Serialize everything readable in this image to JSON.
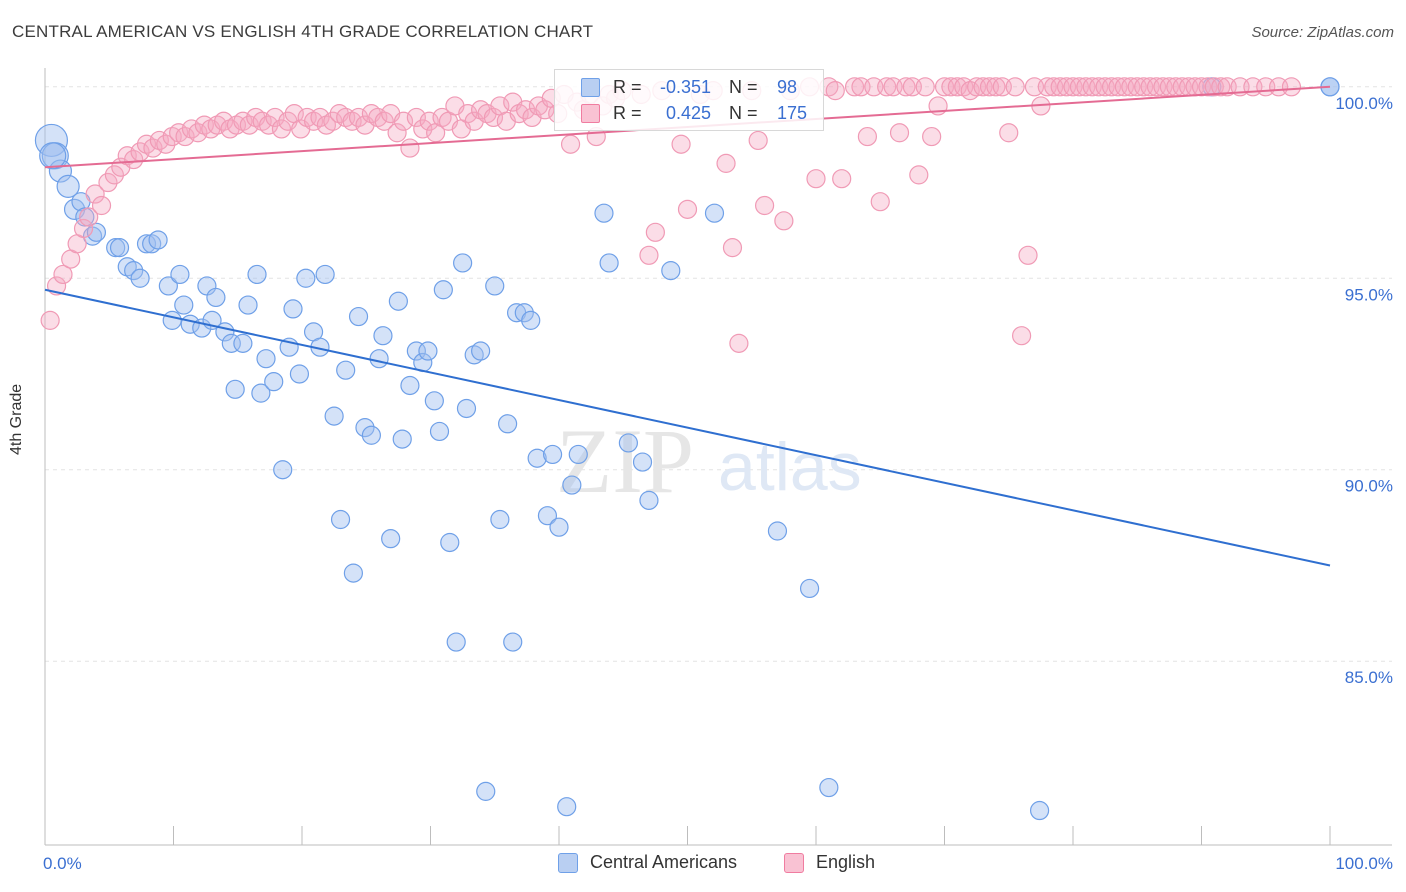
{
  "header": {
    "title": "CENTRAL AMERICAN VS ENGLISH 4TH GRADE CORRELATION CHART",
    "source": "Source: ZipAtlas.com"
  },
  "watermark": {
    "zip": "ZIP",
    "atlas": "atlas"
  },
  "legend": {
    "items": [
      {
        "label": "Central Americans",
        "color": "#6fa0e8"
      },
      {
        "label": "English",
        "color": "#f07ca0"
      }
    ]
  },
  "stats": [
    {
      "r_label": "R =",
      "r_value": "-0.351",
      "n_label": "N =",
      "n_value": "98"
    },
    {
      "r_label": "R =",
      "r_value": "0.425",
      "n_label": "N =",
      "n_value": "175"
    }
  ],
  "chart_data": {
    "type": "scatter",
    "title": "CENTRAL AMERICAN VS ENGLISH 4TH GRADE CORRELATION CHART",
    "xlabel": "",
    "ylabel": "4th Grade",
    "xlim": [
      0,
      100
    ],
    "ylim": [
      80.2,
      100.7
    ],
    "x_tick_labels": [
      "0.0%",
      "100.0%"
    ],
    "y_ticks": [
      85,
      90,
      95,
      100
    ],
    "y_tick_labels": [
      "85.0%",
      "90.0%",
      "95.0%",
      "100.0%"
    ],
    "grid": true,
    "colors": {
      "blue": "#6fa0e8",
      "blue_line": "#2f6fd0",
      "pink": "#f07ca0",
      "pink_line": "#e46b93"
    },
    "series": [
      {
        "name": "Central Americans",
        "r": -0.351,
        "n": 98,
        "trend": {
          "x0": 0,
          "y0": 94.7,
          "x1": 100,
          "y1": 87.5
        },
        "points": [
          [
            0.5,
            98.6
          ],
          [
            0.8,
            98.2
          ],
          [
            1.2,
            97.8
          ],
          [
            1.8,
            97.4
          ],
          [
            2.3,
            96.8
          ],
          [
            2.8,
            97.0
          ],
          [
            3.1,
            96.6
          ],
          [
            3.7,
            96.1
          ],
          [
            4.0,
            96.2
          ],
          [
            5.5,
            95.8
          ],
          [
            5.8,
            95.8
          ],
          [
            6.4,
            95.3
          ],
          [
            6.9,
            95.2
          ],
          [
            7.4,
            95.0
          ],
          [
            7.9,
            95.9
          ],
          [
            8.3,
            95.9
          ],
          [
            8.8,
            96.0
          ],
          [
            9.6,
            94.8
          ],
          [
            9.9,
            93.9
          ],
          [
            10.5,
            95.1
          ],
          [
            10.8,
            94.3
          ],
          [
            11.3,
            93.8
          ],
          [
            12.2,
            93.7
          ],
          [
            12.6,
            94.8
          ],
          [
            13.0,
            93.9
          ],
          [
            13.3,
            94.5
          ],
          [
            14.0,
            93.6
          ],
          [
            14.5,
            93.3
          ],
          [
            14.8,
            92.1
          ],
          [
            15.4,
            93.3
          ],
          [
            15.8,
            94.3
          ],
          [
            16.5,
            95.1
          ],
          [
            16.8,
            92.0
          ],
          [
            17.2,
            92.9
          ],
          [
            17.8,
            92.3
          ],
          [
            18.5,
            90.0
          ],
          [
            19.0,
            93.2
          ],
          [
            19.3,
            94.2
          ],
          [
            19.8,
            92.5
          ],
          [
            20.3,
            95.0
          ],
          [
            20.9,
            93.6
          ],
          [
            21.4,
            93.2
          ],
          [
            21.8,
            95.1
          ],
          [
            22.5,
            91.4
          ],
          [
            23.0,
            88.7
          ],
          [
            23.4,
            92.6
          ],
          [
            24.0,
            87.3
          ],
          [
            24.4,
            94.0
          ],
          [
            24.9,
            91.1
          ],
          [
            25.4,
            90.9
          ],
          [
            26.0,
            92.9
          ],
          [
            26.3,
            93.5
          ],
          [
            26.9,
            88.2
          ],
          [
            27.5,
            94.4
          ],
          [
            27.8,
            90.8
          ],
          [
            28.4,
            92.2
          ],
          [
            28.9,
            93.1
          ],
          [
            29.4,
            92.8
          ],
          [
            29.8,
            93.1
          ],
          [
            30.3,
            91.8
          ],
          [
            30.7,
            91.0
          ],
          [
            31.0,
            94.7
          ],
          [
            31.5,
            88.1
          ],
          [
            32.0,
            85.5
          ],
          [
            32.5,
            95.4
          ],
          [
            32.8,
            91.6
          ],
          [
            33.4,
            93.0
          ],
          [
            33.9,
            93.1
          ],
          [
            34.3,
            81.6
          ],
          [
            35.0,
            94.8
          ],
          [
            35.4,
            88.7
          ],
          [
            36.0,
            91.2
          ],
          [
            36.4,
            85.5
          ],
          [
            36.7,
            94.1
          ],
          [
            37.3,
            94.1
          ],
          [
            37.8,
            93.9
          ],
          [
            38.3,
            90.3
          ],
          [
            39.1,
            88.8
          ],
          [
            39.5,
            90.4
          ],
          [
            40.0,
            88.5
          ],
          [
            40.6,
            81.2
          ],
          [
            41.0,
            89.6
          ],
          [
            41.5,
            90.4
          ],
          [
            43.5,
            96.7
          ],
          [
            43.9,
            95.4
          ],
          [
            45.4,
            90.7
          ],
          [
            46.5,
            90.2
          ],
          [
            47.0,
            89.2
          ],
          [
            48.7,
            95.2
          ],
          [
            52.1,
            96.7
          ],
          [
            57.0,
            88.4
          ],
          [
            59.5,
            86.9
          ],
          [
            61.0,
            81.7
          ],
          [
            77.4,
            81.1
          ],
          [
            90.8,
            100.0
          ],
          [
            100.0,
            100.0
          ],
          [
            100.0,
            100.0
          ],
          [
            0.6,
            98.2
          ]
        ]
      },
      {
        "name": "English",
        "r": 0.425,
        "n": 175,
        "trend": {
          "x0": 0,
          "y0": 97.9,
          "x1": 100,
          "y1": 100.0
        },
        "points": [
          [
            0.4,
            93.9
          ],
          [
            0.9,
            94.8
          ],
          [
            1.4,
            95.1
          ],
          [
            2.0,
            95.5
          ],
          [
            2.5,
            95.9
          ],
          [
            3.0,
            96.3
          ],
          [
            3.4,
            96.6
          ],
          [
            3.9,
            97.2
          ],
          [
            4.4,
            96.9
          ],
          [
            4.9,
            97.5
          ],
          [
            5.4,
            97.7
          ],
          [
            5.9,
            97.9
          ],
          [
            6.4,
            98.2
          ],
          [
            6.9,
            98.1
          ],
          [
            7.4,
            98.3
          ],
          [
            7.9,
            98.5
          ],
          [
            8.4,
            98.4
          ],
          [
            8.9,
            98.6
          ],
          [
            9.4,
            98.5
          ],
          [
            9.9,
            98.7
          ],
          [
            10.4,
            98.8
          ],
          [
            10.9,
            98.7
          ],
          [
            11.4,
            98.9
          ],
          [
            11.9,
            98.8
          ],
          [
            12.4,
            99.0
          ],
          [
            12.9,
            98.9
          ],
          [
            13.4,
            99.0
          ],
          [
            13.9,
            99.1
          ],
          [
            14.4,
            98.9
          ],
          [
            14.9,
            99.0
          ],
          [
            15.4,
            99.1
          ],
          [
            15.9,
            99.0
          ],
          [
            16.4,
            99.2
          ],
          [
            16.9,
            99.1
          ],
          [
            17.4,
            99.0
          ],
          [
            17.9,
            99.2
          ],
          [
            18.4,
            98.9
          ],
          [
            18.9,
            99.1
          ],
          [
            19.4,
            99.3
          ],
          [
            19.9,
            98.9
          ],
          [
            20.4,
            99.2
          ],
          [
            20.9,
            99.1
          ],
          [
            21.4,
            99.2
          ],
          [
            21.9,
            99.0
          ],
          [
            22.4,
            99.1
          ],
          [
            22.9,
            99.3
          ],
          [
            23.4,
            99.2
          ],
          [
            23.9,
            99.1
          ],
          [
            24.4,
            99.2
          ],
          [
            24.9,
            99.0
          ],
          [
            25.4,
            99.3
          ],
          [
            25.9,
            99.2
          ],
          [
            26.4,
            99.1
          ],
          [
            26.9,
            99.3
          ],
          [
            27.4,
            98.8
          ],
          [
            27.9,
            99.1
          ],
          [
            28.4,
            98.4
          ],
          [
            28.9,
            99.2
          ],
          [
            29.4,
            98.9
          ],
          [
            29.9,
            99.1
          ],
          [
            30.4,
            98.8
          ],
          [
            30.9,
            99.2
          ],
          [
            31.4,
            99.1
          ],
          [
            31.9,
            99.5
          ],
          [
            32.4,
            98.9
          ],
          [
            32.9,
            99.3
          ],
          [
            33.4,
            99.1
          ],
          [
            33.9,
            99.4
          ],
          [
            34.4,
            99.3
          ],
          [
            34.9,
            99.2
          ],
          [
            35.4,
            99.5
          ],
          [
            35.9,
            99.1
          ],
          [
            36.4,
            99.6
          ],
          [
            36.9,
            99.3
          ],
          [
            37.4,
            99.4
          ],
          [
            37.9,
            99.2
          ],
          [
            38.4,
            99.5
          ],
          [
            38.9,
            99.4
          ],
          [
            39.4,
            99.7
          ],
          [
            39.9,
            99.3
          ],
          [
            40.4,
            99.8
          ],
          [
            40.9,
            98.5
          ],
          [
            41.4,
            99.6
          ],
          [
            41.9,
            99.4
          ],
          [
            42.4,
            99.8
          ],
          [
            42.9,
            98.7
          ],
          [
            43.4,
            99.5
          ],
          [
            43.9,
            99.8
          ],
          [
            44.4,
            99.7
          ],
          [
            44.9,
            99.9
          ],
          [
            46.4,
            99.8
          ],
          [
            47.0,
            95.6
          ],
          [
            47.5,
            96.2
          ],
          [
            48.0,
            99.9
          ],
          [
            49.5,
            98.5
          ],
          [
            50.0,
            96.8
          ],
          [
            51.0,
            99.8
          ],
          [
            52.0,
            99.9
          ],
          [
            53.0,
            98.0
          ],
          [
            53.5,
            95.8
          ],
          [
            54.0,
            93.3
          ],
          [
            55.0,
            99.9
          ],
          [
            55.5,
            98.6
          ],
          [
            56.0,
            96.9
          ],
          [
            57.5,
            96.5
          ],
          [
            58.0,
            99.9
          ],
          [
            59.5,
            100.0
          ],
          [
            60.0,
            97.6
          ],
          [
            61.0,
            100.0
          ],
          [
            61.5,
            99.9
          ],
          [
            62.0,
            97.6
          ],
          [
            63.0,
            100.0
          ],
          [
            63.5,
            100.0
          ],
          [
            64.0,
            98.7
          ],
          [
            64.5,
            100.0
          ],
          [
            65.0,
            97.0
          ],
          [
            65.5,
            100.0
          ],
          [
            66.0,
            100.0
          ],
          [
            66.5,
            98.8
          ],
          [
            67.0,
            100.0
          ],
          [
            67.5,
            100.0
          ],
          [
            68.0,
            97.7
          ],
          [
            68.5,
            100.0
          ],
          [
            69.0,
            98.7
          ],
          [
            69.5,
            99.5
          ],
          [
            70.0,
            100.0
          ],
          [
            70.5,
            100.0
          ],
          [
            71.0,
            100.0
          ],
          [
            71.5,
            100.0
          ],
          [
            72.0,
            99.9
          ],
          [
            72.5,
            100.0
          ],
          [
            73.0,
            100.0
          ],
          [
            73.5,
            100.0
          ],
          [
            74.0,
            100.0
          ],
          [
            74.5,
            100.0
          ],
          [
            75.0,
            98.8
          ],
          [
            75.5,
            100.0
          ],
          [
            76.0,
            93.5
          ],
          [
            76.5,
            95.6
          ],
          [
            77.0,
            100.0
          ],
          [
            77.5,
            99.5
          ],
          [
            78.0,
            100.0
          ],
          [
            78.5,
            100.0
          ],
          [
            79.0,
            100.0
          ],
          [
            79.5,
            100.0
          ],
          [
            80.0,
            100.0
          ],
          [
            80.5,
            100.0
          ],
          [
            81.0,
            100.0
          ],
          [
            81.5,
            100.0
          ],
          [
            82.0,
            100.0
          ],
          [
            82.5,
            100.0
          ],
          [
            83.0,
            100.0
          ],
          [
            83.5,
            100.0
          ],
          [
            84.0,
            100.0
          ],
          [
            84.5,
            100.0
          ],
          [
            85.0,
            100.0
          ],
          [
            85.5,
            100.0
          ],
          [
            86.0,
            100.0
          ],
          [
            86.5,
            100.0
          ],
          [
            87.0,
            100.0
          ],
          [
            87.5,
            100.0
          ],
          [
            88.0,
            100.0
          ],
          [
            88.5,
            100.0
          ],
          [
            89.0,
            100.0
          ],
          [
            89.5,
            100.0
          ],
          [
            90.0,
            100.0
          ],
          [
            90.5,
            100.0
          ],
          [
            91.0,
            100.0
          ],
          [
            91.5,
            100.0
          ],
          [
            92.0,
            100.0
          ],
          [
            93.0,
            100.0
          ],
          [
            94.0,
            100.0
          ],
          [
            95.0,
            100.0
          ],
          [
            96.0,
            100.0
          ],
          [
            97.0,
            100.0
          ]
        ]
      }
    ]
  }
}
